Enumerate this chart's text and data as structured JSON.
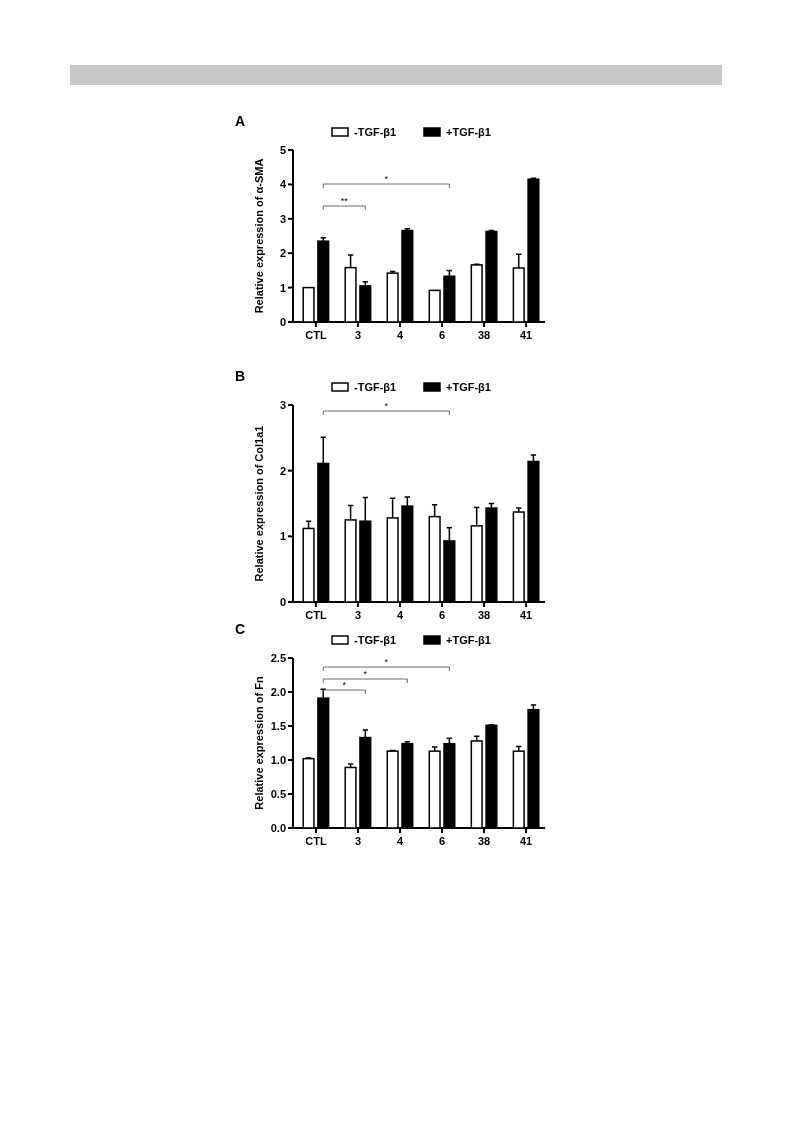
{
  "chart_data": [
    {
      "type": "bar",
      "title": "A",
      "ylabel": "Relative expression of α-SMA",
      "categories": [
        "CTL",
        "3",
        "4",
        "6",
        "38",
        "41"
      ],
      "legend": "top",
      "ylim": [
        0,
        5
      ],
      "yticks": [
        0,
        1,
        2,
        3,
        4,
        5
      ],
      "annotations": [
        "**",
        "*"
      ],
      "series": [
        {
          "name": "-TGF-β1",
          "color": "#ffffff",
          "values": [
            1.0,
            1.58,
            1.42,
            0.92,
            1.66,
            1.57
          ],
          "errors": [
            null,
            [
              1.58,
              1.95
            ],
            [
              1.42,
              1.47
            ],
            null,
            [
              1.66,
              1.68
            ],
            [
              1.57,
              1.97
            ]
          ]
        },
        {
          "name": "+TGF-β1",
          "color": "#000000",
          "values": [
            2.35,
            1.05,
            2.66,
            1.33,
            2.63,
            4.15
          ],
          "errors": [
            [
              2.35,
              2.45
            ],
            [
              1.05,
              1.17
            ],
            [
              2.66,
              2.71
            ],
            [
              1.33,
              1.5
            ],
            [
              2.63,
              2.66
            ],
            [
              4.15,
              4.18
            ]
          ]
        }
      ]
    },
    {
      "type": "bar",
      "title": "B",
      "ylabel": "Relative expression of Col1a1",
      "categories": [
        "CTL",
        "3",
        "4",
        "6",
        "38",
        "41"
      ],
      "legend": "top",
      "ylim": [
        0,
        3
      ],
      "yticks": [
        0,
        1,
        2,
        3
      ],
      "annotations": [
        "*"
      ],
      "series": [
        {
          "name": "-TGF-β1",
          "color": "#ffffff",
          "values": [
            1.12,
            1.25,
            1.28,
            1.3,
            1.16,
            1.37
          ],
          "errors": [
            [
              1.12,
              1.23
            ],
            [
              1.25,
              1.47
            ],
            [
              1.28,
              1.58
            ],
            [
              1.3,
              1.48
            ],
            [
              1.16,
              1.44
            ],
            [
              1.37,
              1.43
            ]
          ]
        },
        {
          "name": "+TGF-β1",
          "color": "#000000",
          "values": [
            2.11,
            1.23,
            1.46,
            0.93,
            1.43,
            2.14
          ],
          "errors": [
            [
              2.11,
              2.51
            ],
            [
              1.23,
              1.59
            ],
            [
              1.46,
              1.6
            ],
            [
              0.93,
              1.13
            ],
            [
              1.43,
              1.5
            ],
            [
              2.14,
              2.24
            ]
          ]
        }
      ]
    },
    {
      "type": "bar",
      "title": "C",
      "ylabel": "Relative expression of Fn",
      "categories": [
        "CTL",
        "3",
        "4",
        "6",
        "38",
        "41"
      ],
      "legend": "top",
      "ylim": [
        0,
        2.5
      ],
      "yticks": [
        {
          "value": 0,
          "label": "0.0"
        },
        {
          "value": 0.5,
          "label": "0.5"
        },
        {
          "value": 1,
          "label": "1.0"
        },
        {
          "value": 1.5,
          "label": "1.5"
        },
        {
          "value": 2,
          "label": "2.0"
        },
        {
          "value": 2.5,
          "label": "2.5"
        }
      ],
      "annotations": [
        "*",
        "*",
        "*"
      ],
      "series": [
        {
          "name": "-TGF-β1",
          "color": "#ffffff",
          "values": [
            1.02,
            0.89,
            1.13,
            1.13,
            1.28,
            1.13
          ],
          "errors": [
            [
              1.02,
              1.03
            ],
            [
              0.89,
              0.94
            ],
            [
              1.13,
              1.14
            ],
            [
              1.13,
              1.19
            ],
            [
              1.28,
              1.35
            ],
            [
              1.13,
              1.2
            ]
          ]
        },
        {
          "name": "+TGF-β1",
          "color": "#000000",
          "values": [
            1.91,
            1.33,
            1.24,
            1.24,
            1.51,
            1.74
          ],
          "errors": [
            [
              1.91,
              2.04
            ],
            [
              1.33,
              1.44
            ],
            [
              1.24,
              1.27
            ],
            [
              1.24,
              1.32
            ],
            [
              1.51,
              1.52
            ],
            [
              1.74,
              1.81
            ]
          ]
        }
      ]
    }
  ]
}
